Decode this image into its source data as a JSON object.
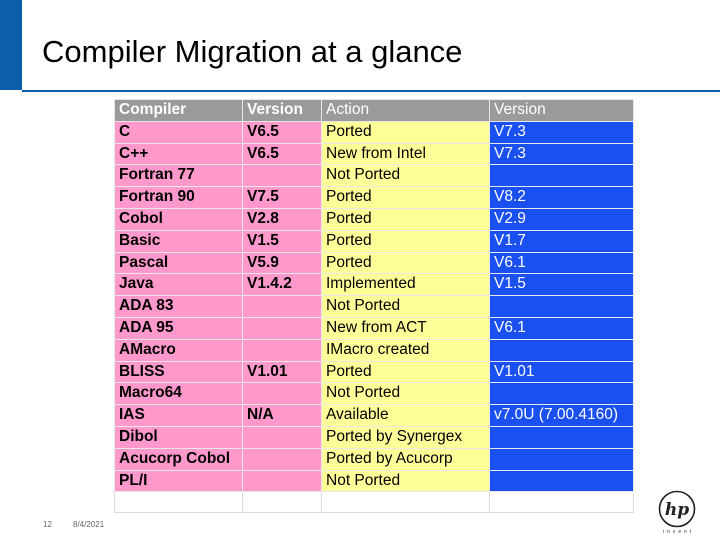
{
  "title": "Compiler Migration at a glance",
  "colors": {
    "accent": "#0b5ea8",
    "header": "#9a9a9a",
    "pink": "#ff99cc",
    "yellow": "#ffff99",
    "blue": "#1a4ff0"
  },
  "table": {
    "headers": [
      "Compiler",
      "Version",
      "Action",
      "Version"
    ],
    "rows": [
      [
        "C",
        "V6.5",
        "Ported",
        "V7.3"
      ],
      [
        "C++",
        "V6.5",
        "New from Intel",
        "V7.3"
      ],
      [
        "Fortran 77",
        "",
        "Not Ported",
        ""
      ],
      [
        "Fortran 90",
        "V7.5",
        "Ported",
        "V8.2"
      ],
      [
        "Cobol",
        "V2.8",
        "Ported",
        "V2.9"
      ],
      [
        "Basic",
        "V1.5",
        "Ported",
        "V1.7"
      ],
      [
        "Pascal",
        "V5.9",
        "Ported",
        "V6.1"
      ],
      [
        "Java",
        "V1.4.2",
        "Implemented",
        "V1.5"
      ],
      [
        "ADA 83",
        "",
        "Not Ported",
        ""
      ],
      [
        "ADA 95",
        "",
        "New from ACT",
        "V6.1"
      ],
      [
        "AMacro",
        "",
        "IMacro created",
        ""
      ],
      [
        "BLISS",
        "V1.01",
        "Ported",
        "V1.01"
      ],
      [
        "Macro64",
        "",
        "Not Ported",
        ""
      ],
      [
        "IAS",
        "N/A",
        "Available",
        "v7.0U (7.00.4160)"
      ],
      [
        "Dibol",
        "",
        "Ported by Synergex",
        ""
      ],
      [
        "Acucorp Cobol",
        "",
        "Ported by Acucorp",
        ""
      ],
      [
        "PL/I",
        "",
        "Not Ported",
        ""
      ]
    ]
  },
  "footer": {
    "slide_number": "12",
    "date": "8/4/2021",
    "logo_text": "invent",
    "logo_icon": "hp-logo-icon"
  }
}
